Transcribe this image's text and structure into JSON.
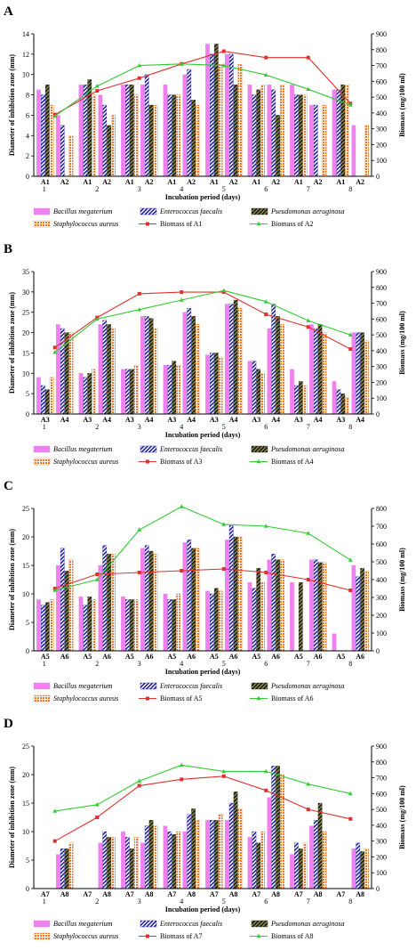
{
  "panel_letters": [
    "A",
    "B",
    "C",
    "D"
  ],
  "colors": {
    "bacillus": "#f080f0",
    "enterococcus": "#1a1aa0",
    "pseudomonas": "#2a2a18",
    "staph": "#f07828",
    "biomass1": "#e03030",
    "biomass2": "#33cc33"
  },
  "chart_data": [
    {
      "type": "bar",
      "panel": "A",
      "ylabel": "Diameter of inhibition zone (mm)",
      "y2label": "Biomass (mg/100 ml)",
      "xlabel": "Incubation period (days)",
      "ylim": [
        0,
        14
      ],
      "yticks": [
        "0",
        "2",
        "4",
        "6",
        "8",
        "10",
        "12",
        "14"
      ],
      "y2lim": [
        0,
        900
      ],
      "y2ticks": [
        "0",
        "100",
        "200",
        "300",
        "400",
        "500",
        "600",
        "700",
        "800",
        "900"
      ],
      "days": [
        "1",
        "2",
        "3",
        "4",
        "5",
        "6",
        "7",
        "8"
      ],
      "isolates": [
        "A1",
        "A2"
      ],
      "series": [
        {
          "name": "Bacillus megaterium",
          "values": [
            [
              8.5,
              6
            ],
            [
              9,
              8
            ],
            [
              9,
              9
            ],
            [
              9,
              10
            ],
            [
              13,
              12
            ],
            [
              9,
              9
            ],
            [
              9,
              7
            ],
            [
              8.5,
              5
            ]
          ]
        },
        {
          "name": "Enterococcus faecalis",
          "values": [
            [
              8,
              5
            ],
            [
              9,
              7
            ],
            [
              9,
              10
            ],
            [
              8,
              10.5
            ],
            [
              12,
              12
            ],
            [
              8,
              8.5
            ],
            [
              8,
              7
            ],
            [
              8.5,
              0
            ]
          ]
        },
        {
          "name": "Pseudomonas aeruginosa",
          "values": [
            [
              9,
              0
            ],
            [
              9.5,
              5
            ],
            [
              9,
              7
            ],
            [
              8,
              7.5
            ],
            [
              13,
              9
            ],
            [
              8.5,
              6
            ],
            [
              8,
              0
            ],
            [
              9,
              0
            ]
          ]
        },
        {
          "name": "Staphylococcus aureus",
          "values": [
            [
              7,
              4
            ],
            [
              8,
              6
            ],
            [
              8,
              7
            ],
            [
              8,
              7
            ],
            [
              11,
              11
            ],
            [
              9,
              9
            ],
            [
              8,
              7
            ],
            [
              9,
              5
            ]
          ]
        },
        {
          "name": "Biomass of A1",
          "line": true,
          "values": [
            390,
            540,
            620,
            710,
            790,
            750,
            750,
            460
          ]
        },
        {
          "name": "Biomass of A2",
          "line": true,
          "values": [
            380,
            570,
            700,
            710,
            700,
            640,
            550,
            450
          ]
        }
      ]
    },
    {
      "type": "bar",
      "panel": "B",
      "ylabel": "Diameter of inhibition zone (mm)",
      "y2label": "Biomass (mg/100 ml)",
      "xlabel": "Incubation period (days)",
      "ylim": [
        0,
        35
      ],
      "yticks": [
        "0",
        "5",
        "10",
        "15",
        "20",
        "25",
        "30",
        "35"
      ],
      "y2lim": [
        0,
        900
      ],
      "y2ticks": [
        "0",
        "100",
        "200",
        "300",
        "400",
        "500",
        "600",
        "700",
        "800",
        "900"
      ],
      "days": [
        "1",
        "2",
        "3",
        "4",
        "5",
        "6",
        "7",
        "8"
      ],
      "isolates": [
        "A3",
        "A4"
      ],
      "series": [
        {
          "name": "Bacillus megaterium",
          "values": [
            [
              9,
              22
            ],
            [
              10,
              22
            ],
            [
              11,
              24
            ],
            [
              12,
              25
            ],
            [
              14.5,
              27
            ],
            [
              13,
              21
            ],
            [
              11,
              22
            ],
            [
              8,
              20
            ]
          ]
        },
        {
          "name": "Enterococcus faecalis",
          "values": [
            [
              7,
              21
            ],
            [
              9,
              23
            ],
            [
              11,
              24
            ],
            [
              12,
              26
            ],
            [
              15,
              27
            ],
            [
              13,
              27
            ],
            [
              7,
              21
            ],
            [
              6,
              20
            ]
          ]
        },
        {
          "name": "Pseudomonas aeruginosa",
          "values": [
            [
              6,
              20
            ],
            [
              10,
              22
            ],
            [
              11,
              23.5
            ],
            [
              13,
              24
            ],
            [
              15,
              28
            ],
            [
              11,
              24
            ],
            [
              8,
              22
            ],
            [
              5,
              20
            ]
          ]
        },
        {
          "name": "Staphylococcus aureus",
          "values": [
            [
              9,
              20
            ],
            [
              11,
              21
            ],
            [
              12,
              21
            ],
            [
              12,
              22
            ],
            [
              14,
              26
            ],
            [
              10,
              22
            ],
            [
              7,
              20
            ],
            [
              4,
              18
            ]
          ]
        },
        {
          "name": "Biomass of A3",
          "line": true,
          "values": [
            420,
            610,
            760,
            770,
            770,
            630,
            550,
            410
          ]
        },
        {
          "name": "Biomass of A4",
          "line": true,
          "values": [
            390,
            600,
            660,
            720,
            780,
            710,
            590,
            500
          ]
        }
      ]
    },
    {
      "type": "bar",
      "panel": "C",
      "ylabel": "Diameter of inhibition zone (mm)",
      "y2label": "Biomass (mg/100 ml)",
      "xlabel": "Incubation period (days)",
      "ylim": [
        0,
        25
      ],
      "yticks": [
        "0",
        "5",
        "10",
        "15",
        "20",
        "25"
      ],
      "y2lim": [
        0,
        800
      ],
      "y2ticks": [
        "0",
        "100",
        "200",
        "300",
        "400",
        "500",
        "600",
        "700",
        "800"
      ],
      "days": [
        "1",
        "2",
        "3",
        "4",
        "5",
        "6",
        "7",
        "8"
      ],
      "isolates": [
        "A5",
        "A6"
      ],
      "series": [
        {
          "name": "Bacillus megaterium",
          "values": [
            [
              9,
              15
            ],
            [
              9.5,
              15
            ],
            [
              9.5,
              18
            ],
            [
              10,
              19
            ],
            [
              10.5,
              19.5
            ],
            [
              12,
              16
            ],
            [
              12,
              16
            ],
            [
              3,
              15
            ]
          ]
        },
        {
          "name": "Enterococcus faecalis",
          "values": [
            [
              8,
              18
            ],
            [
              8,
              18.5
            ],
            [
              9,
              18.5
            ],
            [
              9,
              19.5
            ],
            [
              10,
              22
            ],
            [
              11,
              17
            ],
            [
              0,
              16
            ],
            [
              0,
              13
            ]
          ]
        },
        {
          "name": "Pseudomonas aeruginosa",
          "values": [
            [
              8.5,
              14
            ],
            [
              9.5,
              17
            ],
            [
              9,
              17.5
            ],
            [
              9,
              18
            ],
            [
              11,
              20
            ],
            [
              14.5,
              16
            ],
            [
              12,
              15.5
            ],
            [
              0,
              14.5
            ]
          ]
        },
        {
          "name": "Staphylococcus aureus",
          "values": [
            [
              9,
              16
            ],
            [
              9,
              17
            ],
            [
              9,
              17
            ],
            [
              10,
              18
            ],
            [
              10.5,
              20
            ],
            [
              12,
              16
            ],
            [
              0,
              15.5
            ],
            [
              0,
              14
            ]
          ]
        },
        {
          "name": "Biomass of A5",
          "line": true,
          "values": [
            350,
            430,
            440,
            450,
            460,
            440,
            400,
            340
          ]
        },
        {
          "name": "Biomass of A6",
          "line": true,
          "values": [
            340,
            400,
            680,
            810,
            710,
            700,
            660,
            510
          ]
        }
      ]
    },
    {
      "type": "bar",
      "panel": "D",
      "ylabel": "Diameter of inhibition zone (mm)",
      "y2label": "Biomass (mg/100 ml)",
      "xlabel": "Incubation period (days)",
      "ylim": [
        0,
        25
      ],
      "yticks": [
        "0",
        "5",
        "10",
        "15",
        "20",
        "25"
      ],
      "y2lim": [
        0,
        900
      ],
      "y2ticks": [
        "0",
        "100",
        "200",
        "300",
        "400",
        "500",
        "600",
        "700",
        "800",
        "900"
      ],
      "days": [
        "1",
        "2",
        "3",
        "4",
        "5",
        "6",
        "7",
        "8"
      ],
      "isolates": [
        "A7",
        "A8"
      ],
      "series": [
        {
          "name": "Bacillus megaterium",
          "values": [
            [
              0,
              6
            ],
            [
              0,
              8
            ],
            [
              10,
              8
            ],
            [
              11,
              10
            ],
            [
              12,
              12
            ],
            [
              9,
              16
            ],
            [
              6,
              11
            ],
            [
              0,
              7
            ]
          ]
        },
        {
          "name": "Enterococcus faecalis",
          "values": [
            [
              0,
              7
            ],
            [
              0,
              10
            ],
            [
              9,
              11
            ],
            [
              10,
              13
            ],
            [
              12,
              15
            ],
            [
              10,
              21.5
            ],
            [
              8,
              12
            ],
            [
              0,
              8
            ]
          ]
        },
        {
          "name": "Pseudomonas aeruginosa",
          "values": [
            [
              0,
              7
            ],
            [
              0,
              9
            ],
            [
              7,
              12
            ],
            [
              9.5,
              14
            ],
            [
              12,
              17
            ],
            [
              8,
              21.5
            ],
            [
              7,
              15
            ],
            [
              0,
              6.5
            ]
          ]
        },
        {
          "name": "Staphylococcus aureus",
          "values": [
            [
              0,
              8
            ],
            [
              0,
              9
            ],
            [
              9,
              11
            ],
            [
              10,
              12
            ],
            [
              13,
              14
            ],
            [
              10,
              20
            ],
            [
              8,
              10
            ],
            [
              0,
              7
            ]
          ]
        },
        {
          "name": "Biomass of A7",
          "line": true,
          "values": [
            300,
            450,
            650,
            690,
            710,
            620,
            500,
            440
          ]
        },
        {
          "name": "Biomass of A8",
          "line": true,
          "values": [
            490,
            530,
            680,
            780,
            740,
            740,
            660,
            600
          ]
        }
      ]
    }
  ]
}
